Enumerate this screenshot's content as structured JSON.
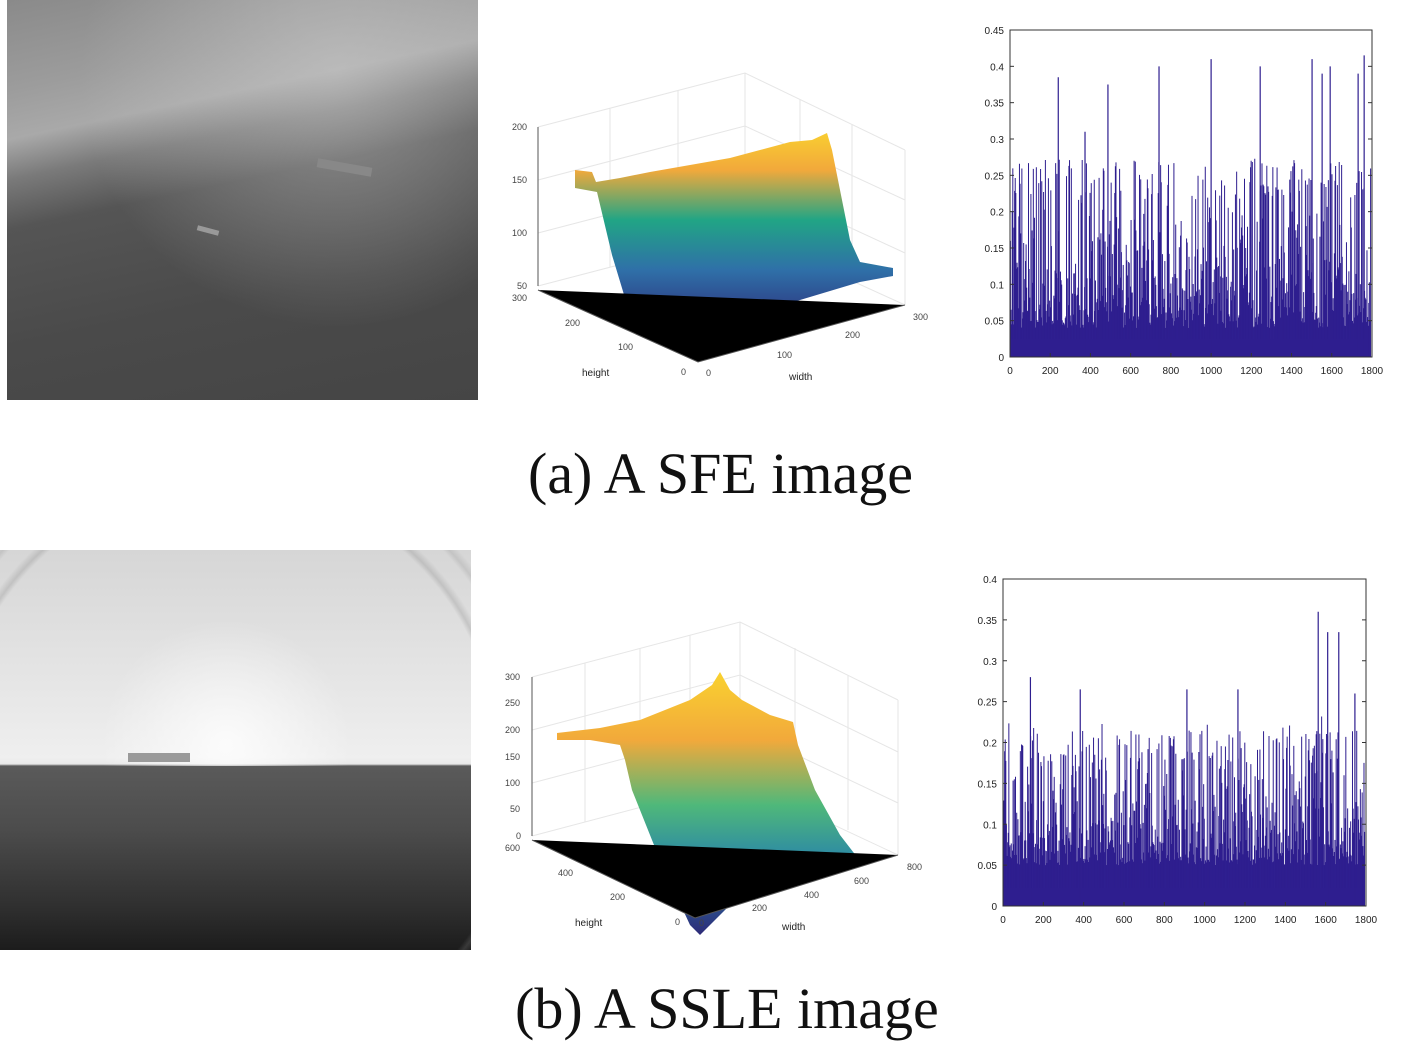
{
  "panels": [
    {
      "caption": "(a) A SFE image",
      "surface": {
        "z_ticks": [
          "200",
          "150",
          "100",
          "50"
        ],
        "height_ticks": [
          "300",
          "200",
          "100",
          "0"
        ],
        "width_ticks": [
          "0",
          "100",
          "200",
          "300"
        ],
        "height_label": "height",
        "width_label": "width"
      }
    },
    {
      "caption": "(b) A SSLE image",
      "surface": {
        "z_ticks": [
          "300",
          "250",
          "200",
          "150",
          "100",
          "50",
          "0"
        ],
        "height_ticks": [
          "600",
          "400",
          "200",
          "0"
        ],
        "width_ticks": [
          "0",
          "200",
          "400",
          "600",
          "800"
        ],
        "height_label": "height",
        "width_label": "width"
      }
    }
  ],
  "colors": {
    "bar": "#2e1e8f",
    "surface_top": "#f9c932",
    "surface_mid": "#21a585",
    "surface_low": "#3b528b",
    "surface_bottom": "#2d2a78"
  },
  "chart_data": [
    {
      "type": "bar",
      "title": "",
      "xlabel": "",
      "ylabel": "",
      "xlim": [
        0,
        1800
      ],
      "ylim": [
        0,
        0.45
      ],
      "xticks": [
        "0",
        "200",
        "400",
        "600",
        "800",
        "1000",
        "1200",
        "1400",
        "1600",
        "1800"
      ],
      "yticks": [
        "0",
        "0.05",
        "0.1",
        "0.15",
        "0.2",
        "0.25",
        "0.3",
        "0.35",
        "0.4",
        "0.45"
      ],
      "typical_level": 0.26,
      "noise_floor": 0.04,
      "peaks": [
        [
          240,
          0.385
        ],
        [
          373,
          0.31
        ],
        [
          487,
          0.375
        ],
        [
          741,
          0.4
        ],
        [
          1000,
          0.41
        ],
        [
          1244,
          0.4
        ],
        [
          1502,
          0.41
        ],
        [
          1552,
          0.39
        ],
        [
          1592,
          0.4
        ],
        [
          1731,
          0.39
        ],
        [
          1761,
          0.415
        ]
      ],
      "grid": false
    },
    {
      "type": "bar",
      "title": "",
      "xlabel": "",
      "ylabel": "",
      "xlim": [
        0,
        1800
      ],
      "ylim": [
        0,
        0.4
      ],
      "xticks": [
        "0",
        "200",
        "400",
        "600",
        "800",
        "1000",
        "1200",
        "1400",
        "1600",
        "1800"
      ],
      "yticks": [
        "0",
        "0.05",
        "0.1",
        "0.15",
        "0.2",
        "0.25",
        "0.3",
        "0.35",
        "0.4"
      ],
      "typical_level": 0.205,
      "noise_floor": 0.05,
      "peaks": [
        [
          136,
          0.28
        ],
        [
          383,
          0.265
        ],
        [
          912,
          0.265
        ],
        [
          1165,
          0.265
        ],
        [
          1563,
          0.36
        ],
        [
          1610,
          0.335
        ],
        [
          1665,
          0.335
        ],
        [
          1745,
          0.26
        ]
      ],
      "grid": false
    }
  ]
}
